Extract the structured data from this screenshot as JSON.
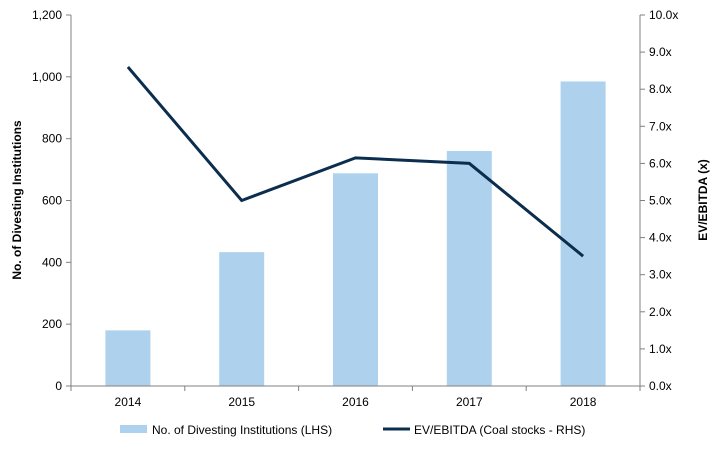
{
  "chart_data": {
    "type": "bar",
    "categories": [
      "2014",
      "2015",
      "2016",
      "2017",
      "2018"
    ],
    "series": [
      {
        "name": "No. of Divesting Institutions (LHS)",
        "type": "bar",
        "axis": "left",
        "color": "#aed2ee",
        "values": [
          180,
          433,
          688,
          760,
          985
        ]
      },
      {
        "name": "EV/EBITDA (Coal stocks - RHS)",
        "type": "line",
        "axis": "right",
        "color": "#0b2e4f",
        "values": [
          8.6,
          5.0,
          6.15,
          6.0,
          3.5
        ]
      }
    ],
    "ylabel": "No. of Divesting Institutions",
    "y2label": "EV/EBITDA (x)",
    "ylim": [
      0,
      1200
    ],
    "y2lim": [
      0,
      10
    ],
    "yticks": [
      "0",
      "200",
      "400",
      "600",
      "800",
      "1,000",
      "1,200"
    ],
    "y2ticks": [
      "0.0x",
      "1.0x",
      "2.0x",
      "3.0x",
      "4.0x",
      "5.0x",
      "6.0x",
      "7.0x",
      "8.0x",
      "9.0x",
      "10.0x"
    ],
    "grid": false,
    "legend_position": "bottom"
  }
}
